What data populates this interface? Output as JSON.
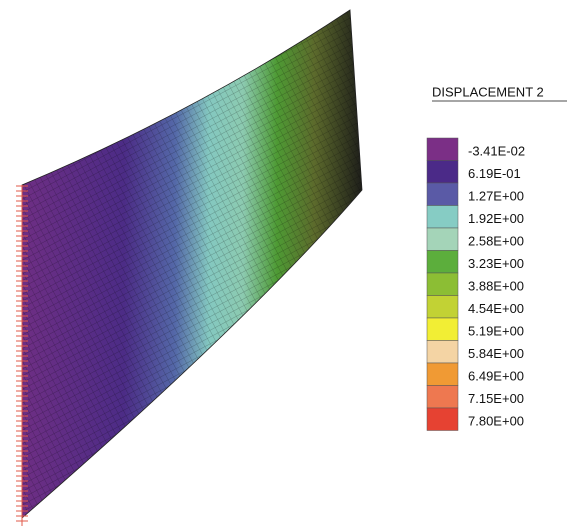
{
  "legend": {
    "title": "DISPLACEMENT 2",
    "items": [
      {
        "label": "-3.41E-02",
        "color": "#7b2f86"
      },
      {
        "label": "6.19E-01",
        "color": "#4b2a88"
      },
      {
        "label": "1.27E+00",
        "color": "#5a5aa6"
      },
      {
        "label": "1.92E+00",
        "color": "#86ccc4"
      },
      {
        "label": "2.58E+00",
        "color": "#a4d4b8"
      },
      {
        "label": "3.23E+00",
        "color": "#5cae3c"
      },
      {
        "label": "3.88E+00",
        "color": "#8cbe34"
      },
      {
        "label": "4.54E+00",
        "color": "#c2d234"
      },
      {
        "label": "5.19E+00",
        "color": "#f2ee34"
      },
      {
        "label": "5.84E+00",
        "color": "#f4d4a4"
      },
      {
        "label": "6.49E+00",
        "color": "#f09a34"
      },
      {
        "label": "7.15E+00",
        "color": "#ee7850"
      },
      {
        "label": "7.80E+00",
        "color": "#e64232"
      }
    ]
  }
}
